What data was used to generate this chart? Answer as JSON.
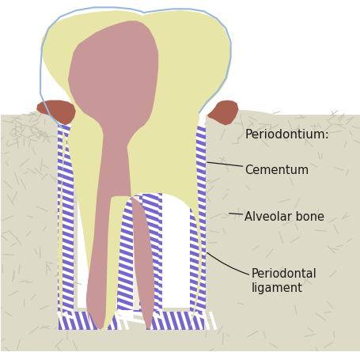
{
  "background_color": "#ffffff",
  "labels": {
    "periodontium": "Periodontium:",
    "cementum": "Cementum",
    "alveolar_bone": "Alveolar bone",
    "periodontal_ligament": "Periodontal\nligament"
  },
  "colors": {
    "bone_fill": "#dddac8",
    "bone_texture": "#c4c0ae",
    "tooth_enamel": "#e8e5a8",
    "tooth_dentin_pink": "#c89898",
    "pulp_light": "#dbb8b0",
    "crown_outline_blue": "#9ab8d8",
    "pdl_purple": "#7766cc",
    "pdl_white": "#ffffff",
    "gum_brown": "#a86050",
    "label_color": "#1a1a1a",
    "arrow_color": "#1a1a1a"
  },
  "figsize": [
    4.56,
    4.45
  ],
  "dpi": 100
}
